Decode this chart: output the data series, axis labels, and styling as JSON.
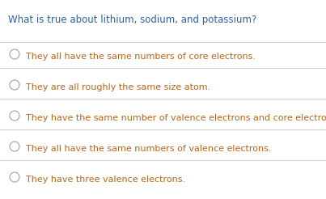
{
  "question": "What is true about lithium, sodium, and potassium?",
  "question_color": "#2e5fa3",
  "options": [
    "They all have the same numbers of core electrons.",
    "They are all roughly the same size atom.",
    "They have the same number of valence electrons and core electrons.",
    "They all have the same numbers of valence electrons.",
    "They have three valence electrons."
  ],
  "option_color": "#b8651a",
  "background_color": "#ffffff",
  "separator_color": "#d0d0d0",
  "question_fontsize": 8.5,
  "option_fontsize": 8.0,
  "circle_color": "#aaaaaa"
}
